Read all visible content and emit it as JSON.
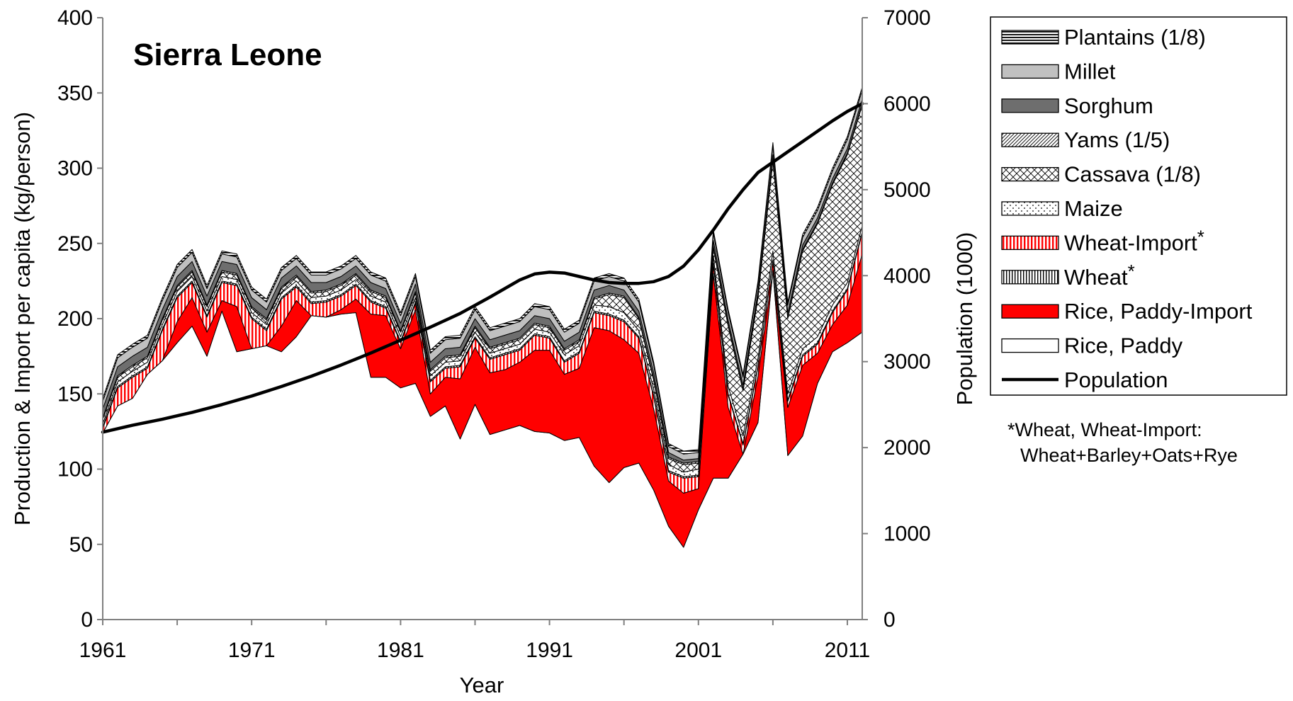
{
  "chart_data": {
    "type": "area",
    "title": "Sierra Leone",
    "xlabel": "Year",
    "ylabel": "Production & Import per capita (kg/person)",
    "y2label": "Population (1000)",
    "xlim": [
      1961,
      2012
    ],
    "ylim": [
      0,
      400
    ],
    "y2lim": [
      0,
      7000
    ],
    "xticks": [
      1961,
      1971,
      1981,
      1991,
      2001,
      2011
    ],
    "yticks": [
      0,
      50,
      100,
      150,
      200,
      250,
      300,
      350,
      400
    ],
    "y2ticks": [
      0,
      1000,
      2000,
      3000,
      4000,
      5000,
      6000,
      7000
    ],
    "x": [
      1961,
      1962,
      1963,
      1964,
      1965,
      1966,
      1967,
      1968,
      1969,
      1970,
      1971,
      1972,
      1973,
      1974,
      1975,
      1976,
      1977,
      1978,
      1979,
      1980,
      1981,
      1982,
      1983,
      1984,
      1985,
      1986,
      1987,
      1988,
      1989,
      1990,
      1991,
      1992,
      1993,
      1994,
      1995,
      1996,
      1997,
      1998,
      1999,
      2000,
      2001,
      2002,
      2003,
      2004,
      2005,
      2006,
      2007,
      2008,
      2009,
      2010,
      2011,
      2012
    ],
    "series": [
      {
        "name": "Rice, Paddy",
        "fill": "white",
        "values": [
          124,
          142,
          147,
          163,
          172,
          184,
          195,
          175,
          205,
          178,
          180,
          182,
          178,
          188,
          202,
          201,
          203,
          204,
          161,
          161,
          154,
          157,
          135,
          142,
          120,
          143,
          123,
          126,
          129,
          125,
          124,
          119,
          121,
          102,
          91,
          101,
          104,
          86,
          62,
          48,
          73,
          94,
          94,
          110,
          131,
          232,
          109,
          122,
          157,
          178,
          184,
          191
        ]
      },
      {
        "name": "Rice, Paddy-Import",
        "fill": "red",
        "values": [
          0,
          0,
          0,
          0,
          0,
          14,
          19,
          16,
          7,
          30,
          0,
          0,
          17,
          24,
          0,
          0,
          3,
          9,
          42,
          41,
          26,
          49,
          15,
          19,
          40,
          38,
          41,
          40,
          42,
          54,
          55,
          44,
          46,
          92,
          101,
          85,
          73,
          54,
          30,
          36,
          14,
          136,
          47,
          0,
          31,
          0,
          32,
          47,
          20,
          18,
          25,
          52
        ]
      },
      {
        "name": "Wheat-Import*",
        "fill": "redstripes",
        "values": [
          3,
          12,
          14,
          4,
          20,
          16,
          10,
          10,
          12,
          14,
          20,
          10,
          18,
          9,
          8,
          10,
          9,
          9,
          8,
          5,
          4,
          4,
          8,
          6,
          8,
          6,
          9,
          10,
          8,
          10,
          8,
          8,
          10,
          10,
          10,
          12,
          10,
          8,
          6,
          10,
          8,
          6,
          8,
          6,
          6,
          6,
          4,
          6,
          6,
          8,
          10,
          14
        ]
      },
      {
        "name": "Wheat*",
        "fill": "vstripes",
        "values": [
          1,
          1,
          1,
          1,
          1,
          1,
          1,
          1,
          1,
          1,
          1,
          1,
          1,
          1,
          1,
          1,
          1,
          1,
          1,
          1,
          1,
          1,
          1,
          1,
          1,
          1,
          1,
          1,
          1,
          1,
          1,
          1,
          1,
          1,
          1,
          1,
          1,
          1,
          1,
          1,
          1,
          1,
          1,
          1,
          1,
          1,
          1,
          1,
          1,
          1,
          1,
          1
        ]
      },
      {
        "name": "Maize",
        "fill": "dots",
        "values": [
          2,
          3,
          3,
          3,
          3,
          3,
          3,
          3,
          3,
          3,
          3,
          3,
          3,
          3,
          3,
          3,
          3,
          3,
          3,
          3,
          3,
          3,
          3,
          3,
          3,
          3,
          3,
          3,
          3,
          3,
          3,
          4,
          4,
          4,
          5,
          5,
          4,
          4,
          4,
          3,
          4,
          5,
          5,
          5,
          5,
          6,
          4,
          4,
          4,
          4,
          4,
          4
        ]
      },
      {
        "name": "Cassava (1/8)",
        "fill": "xhatch",
        "values": [
          3,
          3,
          3,
          3,
          3,
          3,
          3,
          3,
          3,
          3,
          3,
          3,
          3,
          3,
          3,
          3,
          3,
          3,
          3,
          3,
          3,
          3,
          3,
          3,
          3,
          3,
          3,
          3,
          3,
          3,
          3,
          3,
          3,
          4,
          8,
          10,
          8,
          6,
          4,
          5,
          4,
          5,
          40,
          30,
          40,
          60,
          50,
          65,
          75,
          80,
          85,
          80
        ]
      },
      {
        "name": "Yams (1/5)",
        "fill": "diag",
        "values": [
          1,
          1,
          1,
          1,
          1,
          1,
          1,
          1,
          1,
          1,
          1,
          1,
          1,
          1,
          1,
          1,
          1,
          1,
          1,
          1,
          1,
          1,
          1,
          1,
          1,
          1,
          1,
          1,
          1,
          1,
          1,
          1,
          1,
          1,
          1,
          1,
          1,
          1,
          1,
          1,
          1,
          1,
          1,
          1,
          1,
          1,
          1,
          1,
          1,
          1,
          1,
          1
        ]
      },
      {
        "name": "Sorghum",
        "fill": "darkgray",
        "values": [
          6,
          6,
          6,
          6,
          6,
          6,
          6,
          6,
          6,
          6,
          6,
          6,
          6,
          6,
          6,
          5,
          5,
          5,
          5,
          5,
          5,
          5,
          5,
          5,
          5,
          5,
          5,
          5,
          5,
          5,
          5,
          5,
          5,
          5,
          5,
          4,
          4,
          4,
          3,
          2,
          2,
          4,
          3,
          3,
          3,
          3,
          3,
          3,
          3,
          3,
          3,
          3
        ]
      },
      {
        "name": "Millet",
        "fill": "lightgray",
        "values": [
          5,
          6,
          6,
          6,
          6,
          6,
          6,
          5,
          5,
          5,
          5,
          5,
          5,
          5,
          5,
          5,
          5,
          5,
          5,
          5,
          5,
          5,
          6,
          6,
          6,
          6,
          6,
          6,
          6,
          6,
          6,
          6,
          6,
          6,
          6,
          6,
          6,
          5,
          4,
          4,
          4,
          5,
          5,
          5,
          5,
          6,
          5,
          5,
          5,
          5,
          6,
          6
        ]
      },
      {
        "name": "Plantains (1/8)",
        "fill": "hlines",
        "values": [
          2,
          2,
          2,
          2,
          2,
          2,
          2,
          2,
          2,
          2,
          2,
          2,
          2,
          2,
          2,
          2,
          2,
          2,
          2,
          2,
          2,
          2,
          2,
          2,
          2,
          2,
          2,
          2,
          2,
          2,
          2,
          2,
          2,
          2,
          2,
          2,
          2,
          2,
          2,
          2,
          2,
          2,
          2,
          2,
          2,
          2,
          2,
          2,
          2,
          2,
          2,
          2
        ]
      }
    ],
    "population": {
      "name": "Population",
      "x": [
        1961,
        1963,
        1965,
        1967,
        1969,
        1971,
        1973,
        1975,
        1977,
        1979,
        1981,
        1983,
        1985,
        1987,
        1989,
        1990,
        1991,
        1992,
        1993,
        1994,
        1995,
        1996,
        1997,
        1998,
        1999,
        2000,
        2001,
        2002,
        2003,
        2004,
        2005,
        2006,
        2007,
        2008,
        2009,
        2010,
        2011,
        2012
      ],
      "values": [
        2180,
        2260,
        2330,
        2410,
        2500,
        2600,
        2710,
        2830,
        2960,
        3100,
        3250,
        3400,
        3560,
        3750,
        3950,
        4020,
        4040,
        4030,
        3990,
        3950,
        3920,
        3910,
        3910,
        3930,
        3990,
        4110,
        4300,
        4530,
        4780,
        5000,
        5200,
        5320,
        5440,
        5560,
        5680,
        5800,
        5910,
        6000
      ]
    },
    "legend": {
      "placement": "right",
      "items": [
        {
          "label": "Plantains (1/8)",
          "fill": "hlines"
        },
        {
          "label": "Millet",
          "fill": "lightgray"
        },
        {
          "label": "Sorghum",
          "fill": "darkgray"
        },
        {
          "label": "Yams (1/5)",
          "fill": "diag"
        },
        {
          "label": "Cassava (1/8)",
          "fill": "xhatch"
        },
        {
          "label": "Maize",
          "fill": "dots"
        },
        {
          "label": "Wheat-Import",
          "sup": "*",
          "fill": "redstripes"
        },
        {
          "label": "Wheat",
          "sup": "*",
          "fill": "vstripes"
        },
        {
          "label": "Rice, Paddy-Import",
          "fill": "red"
        },
        {
          "label": "Rice, Paddy",
          "fill": "white"
        },
        {
          "label": "Population",
          "fill": "line"
        }
      ]
    },
    "footnote": [
      "*Wheat, Wheat-Import:",
      "Wheat+Barley+Oats+Rye"
    ],
    "colors": {
      "rice_import": "#ff0000",
      "population_line": "#000000"
    }
  }
}
